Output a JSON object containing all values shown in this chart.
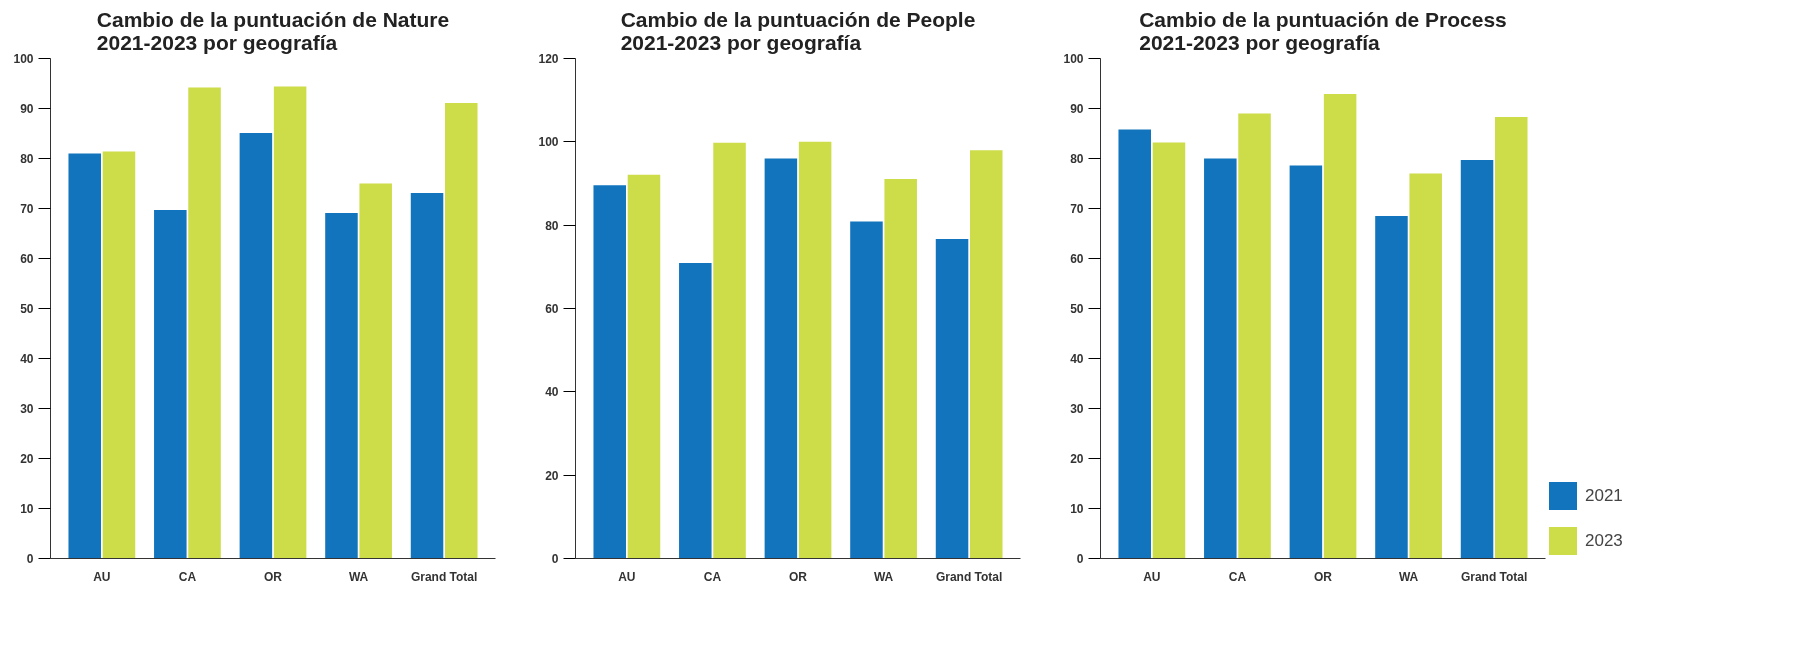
{
  "chart_data": [
    {
      "type": "bar",
      "title": "Cambio de la puntuación de Nature\n2021-2023 por geografía",
      "categories": [
        "AU",
        "CA",
        "OR",
        "WA",
        "Grand Total"
      ],
      "series": [
        {
          "color": "#1174bc",
          "values": [
            81.0,
            69.7,
            85.1,
            69.1,
            73.1
          ]
        },
        {
          "color": "#cddc49",
          "values": [
            81.4,
            94.2,
            94.4,
            75.0,
            91.1
          ]
        }
      ],
      "ylim": [
        0,
        100
      ],
      "yticks": [
        0,
        10,
        20,
        30,
        40,
        50,
        60,
        70,
        80,
        90,
        100
      ],
      "grid": false
    },
    {
      "type": "bar",
      "title": "Cambio de la puntuación de People\n2021-2023 por geografía",
      "categories": [
        "AU",
        "CA",
        "OR",
        "WA",
        "Grand Total"
      ],
      "series": [
        {
          "color": "#1174bc",
          "values": [
            89.6,
            70.9,
            96.0,
            80.9,
            76.7
          ]
        },
        {
          "color": "#cddc49",
          "values": [
            92.1,
            99.8,
            100.0,
            91.1,
            98.0
          ]
        }
      ],
      "ylim": [
        0,
        120
      ],
      "yticks": [
        0,
        20,
        40,
        60,
        80,
        100,
        120
      ],
      "grid": false
    },
    {
      "type": "bar",
      "title": "Cambio de la puntuación de Process\n2021-2023 por geografía",
      "categories": [
        "AU",
        "CA",
        "OR",
        "WA",
        "Grand Total"
      ],
      "series": [
        {
          "name": "2021",
          "color": "#1174bc",
          "values": [
            85.8,
            80.0,
            78.6,
            68.5,
            79.7
          ]
        },
        {
          "name": "2023",
          "color": "#cddc49",
          "values": [
            83.2,
            89.0,
            92.9,
            77.0,
            88.3
          ]
        }
      ],
      "ylim": [
        0,
        100
      ],
      "yticks": [
        0,
        10,
        20,
        30,
        40,
        50,
        60,
        70,
        80,
        90,
        100
      ],
      "grid": false,
      "legend": "bottom right"
    }
  ]
}
